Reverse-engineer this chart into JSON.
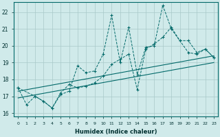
{
  "title": "",
  "xlabel": "Humidex (Indice chaleur)",
  "xlim": [
    -0.5,
    23.5
  ],
  "ylim": [
    15.8,
    22.6
  ],
  "yticks": [
    16,
    17,
    18,
    19,
    20,
    21,
    22
  ],
  "xticks": [
    0,
    1,
    2,
    3,
    4,
    5,
    6,
    7,
    8,
    9,
    10,
    11,
    12,
    13,
    14,
    15,
    16,
    17,
    18,
    19,
    20,
    21,
    22,
    23
  ],
  "bg_color": "#d0eaea",
  "grid_color": "#a8c8c8",
  "line_color": "#006868",
  "line1_x": [
    0,
    1,
    2,
    3,
    4,
    5,
    6,
    7,
    8,
    9,
    10,
    11,
    12,
    13,
    14,
    15,
    16,
    17,
    18,
    19,
    20,
    21,
    22,
    23
  ],
  "line1_y": [
    17.5,
    16.5,
    17.0,
    16.7,
    16.3,
    17.1,
    17.3,
    18.8,
    18.4,
    18.5,
    19.5,
    21.8,
    19.0,
    21.1,
    18.3,
    19.9,
    20.0,
    22.4,
    21.0,
    20.3,
    19.6,
    19.5,
    19.8,
    19.3
  ],
  "line2_x": [
    0,
    2,
    3,
    4,
    5,
    6,
    7,
    8,
    9,
    10,
    11,
    12,
    13,
    14,
    15,
    16,
    17,
    18,
    19,
    20,
    21,
    22,
    23
  ],
  "line2_y": [
    17.5,
    17.0,
    16.7,
    16.3,
    17.2,
    17.7,
    17.5,
    17.6,
    17.8,
    18.2,
    18.9,
    19.2,
    19.5,
    17.4,
    19.8,
    20.1,
    20.5,
    21.1,
    20.3,
    20.3,
    19.6,
    19.8,
    19.3
  ],
  "line3_x": [
    0,
    23
  ],
  "line3_y": [
    16.9,
    19.0
  ],
  "line4_x": [
    0,
    23
  ],
  "line4_y": [
    17.3,
    19.4
  ]
}
